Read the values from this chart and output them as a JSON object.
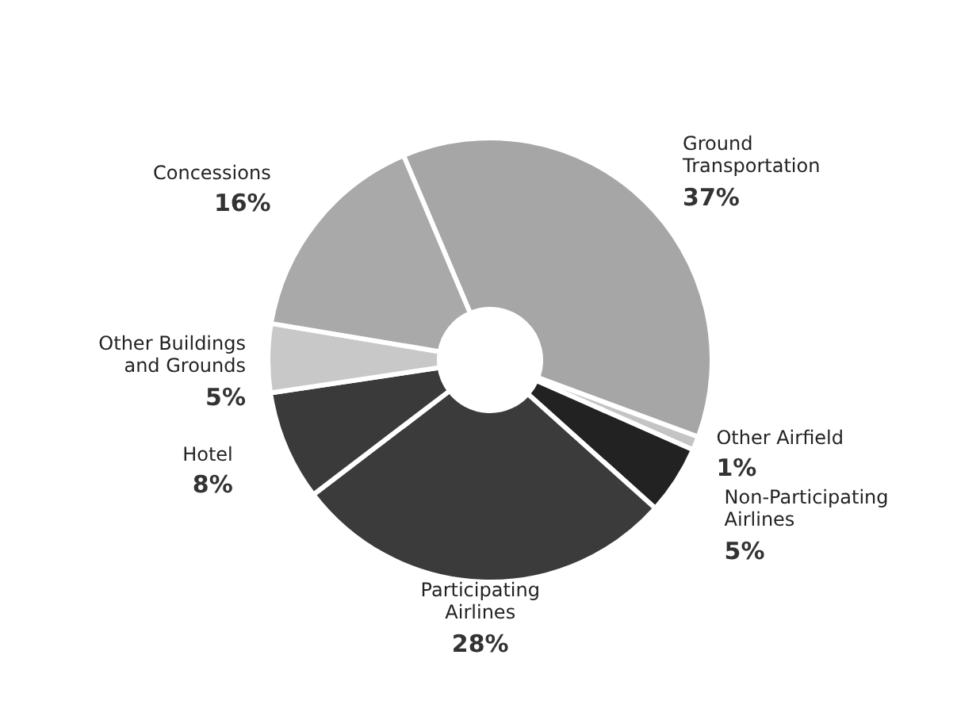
{
  "chart_data": {
    "type": "donut",
    "categories": [
      "Ground Transportation",
      "Other Airfield",
      "Non-Participating Airlines",
      "Participating Airlines",
      "Hotel",
      "Other Buildings and Grounds",
      "Concessions"
    ],
    "values": [
      37,
      1,
      5,
      28,
      8,
      5,
      16
    ],
    "value_labels": [
      "37%",
      "1%",
      "5%",
      "28%",
      "8%",
      "5%",
      "16%"
    ],
    "colors": [
      "#a6a6a6",
      "#c4c4c4",
      "#222222",
      "#3b3b3b",
      "#3a3a3a",
      "#c8c8c8",
      "#a9a9a9"
    ]
  }
}
